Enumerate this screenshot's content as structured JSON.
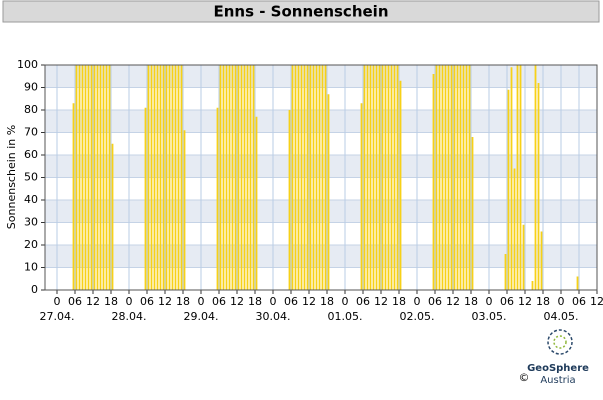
{
  "chart_data": {
    "type": "bar",
    "title": "Enns - Sonnenschein",
    "y_label": "Sonnenschein in %",
    "color": "#f7d117",
    "grid": true,
    "xlim": [
      -4,
      180
    ],
    "ylim": [
      0,
      100
    ],
    "yticks": [
      0,
      10,
      20,
      30,
      40,
      50,
      60,
      70,
      80,
      90,
      100
    ],
    "xticks": [
      0,
      {
        "value": 6,
        "label": "06"
      },
      12,
      18,
      {
        "value": 24,
        "label": "0"
      },
      {
        "value": 30,
        "label": "06"
      },
      {
        "value": 36,
        "label": "12"
      },
      {
        "value": 42,
        "label": "18"
      },
      {
        "value": 48,
        "label": "0"
      },
      {
        "value": 54,
        "label": "06"
      },
      {
        "value": 60,
        "label": "12"
      },
      {
        "value": 66,
        "label": "18"
      },
      {
        "value": 72,
        "label": "0"
      },
      {
        "value": 78,
        "label": "06"
      },
      {
        "value": 84,
        "label": "12"
      },
      {
        "value": 90,
        "label": "18"
      },
      {
        "value": 96,
        "label": "0"
      },
      {
        "value": 102,
        "label": "06"
      },
      {
        "value": 108,
        "label": "12"
      },
      {
        "value": 114,
        "label": "18"
      },
      {
        "value": 120,
        "label": "0"
      },
      {
        "value": 126,
        "label": "06"
      },
      {
        "value": 132,
        "label": "12"
      },
      {
        "value": 138,
        "label": "18"
      },
      {
        "value": 144,
        "label": "0"
      },
      {
        "value": 150,
        "label": "06"
      },
      {
        "value": 156,
        "label": "12"
      },
      {
        "value": 162,
        "label": "18"
      },
      {
        "value": 168,
        "label": "0"
      },
      {
        "value": 174,
        "label": "06"
      },
      {
        "value": 180,
        "label": "12"
      }
    ],
    "date_ticks": [
      {
        "value": 0,
        "label": "27.04."
      },
      {
        "value": 24,
        "label": "28.04."
      },
      {
        "value": 48,
        "label": "29.04."
      },
      {
        "value": 72,
        "label": "30.04."
      },
      {
        "value": 96,
        "label": "01.05."
      },
      {
        "value": 120,
        "label": "02.05."
      },
      {
        "value": 144,
        "label": "03.05."
      },
      {
        "value": 168,
        "label": "04.05."
      }
    ],
    "x": [
      5,
      6,
      7,
      8,
      9,
      10,
      11,
      12,
      13,
      14,
      15,
      16,
      17,
      18,
      29,
      30,
      31,
      32,
      33,
      34,
      35,
      36,
      37,
      38,
      39,
      40,
      41,
      42,
      53,
      54,
      55,
      56,
      57,
      58,
      59,
      60,
      61,
      62,
      63,
      64,
      65,
      66,
      77,
      78,
      79,
      80,
      81,
      82,
      83,
      84,
      85,
      86,
      87,
      88,
      89,
      90,
      101,
      102,
      103,
      104,
      105,
      106,
      107,
      108,
      109,
      110,
      111,
      112,
      113,
      114,
      125,
      126,
      127,
      128,
      129,
      130,
      131,
      132,
      133,
      134,
      135,
      136,
      137,
      138,
      149,
      150,
      151,
      152,
      153,
      154,
      155,
      158,
      159,
      160,
      161,
      173
    ],
    "values": [
      83,
      100,
      100,
      100,
      100,
      100,
      100,
      100,
      100,
      100,
      100,
      100,
      100,
      65,
      81,
      100,
      100,
      100,
      100,
      100,
      100,
      100,
      100,
      100,
      100,
      100,
      100,
      71,
      81,
      100,
      100,
      100,
      100,
      100,
      100,
      100,
      100,
      100,
      100,
      100,
      100,
      77,
      80,
      100,
      100,
      100,
      100,
      100,
      100,
      100,
      100,
      100,
      100,
      100,
      100,
      87,
      83,
      100,
      100,
      100,
      100,
      100,
      100,
      100,
      100,
      100,
      100,
      100,
      100,
      93,
      96,
      100,
      100,
      100,
      100,
      100,
      100,
      100,
      100,
      100,
      100,
      100,
      100,
      68,
      16,
      89,
      99,
      54,
      100,
      100,
      29,
      4,
      100,
      92,
      26,
      6
    ]
  },
  "branding": {
    "name": "GeoSphere",
    "sub": "Austria",
    "copyright": "©"
  }
}
